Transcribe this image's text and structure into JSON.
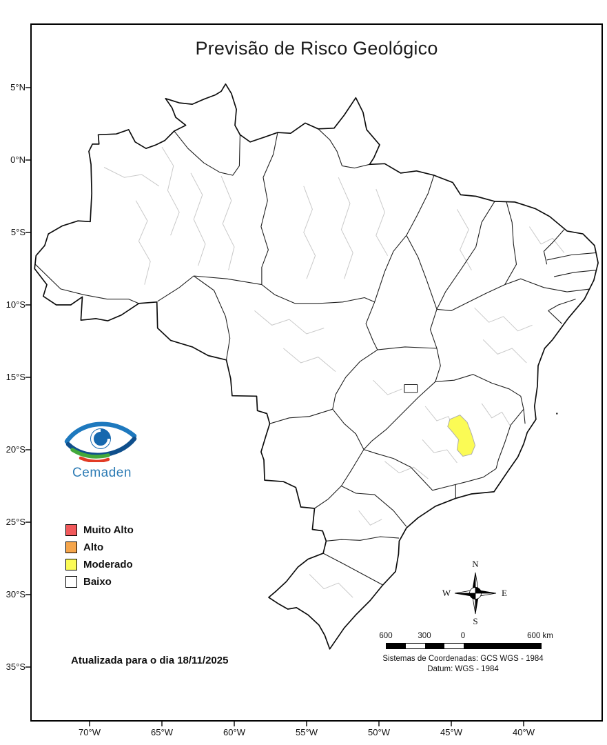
{
  "title": "Previsão de Risco Geológico",
  "axis": {
    "lat": [
      "5°N",
      "0°N",
      "5°S",
      "10°S",
      "15°S",
      "20°S",
      "25°S",
      "30°S",
      "35°S"
    ],
    "lon": [
      "70°W",
      "65°W",
      "60°W",
      "55°W",
      "50°W",
      "45°W",
      "40°W"
    ]
  },
  "legend": {
    "items": [
      {
        "label": "Muito Alto",
        "color": "#F1595B"
      },
      {
        "label": "Alto",
        "color": "#F5A54B"
      },
      {
        "label": "Moderado",
        "color": "#FBFB55"
      },
      {
        "label": "Baixo",
        "color": "#FFFFFF"
      }
    ]
  },
  "logo": {
    "name": "Cemaden"
  },
  "note": "Atualizada para o dia 18/11/2025",
  "compass": {
    "n": "N",
    "e": "E",
    "s": "S",
    "w": "W"
  },
  "scalebar": {
    "labels": [
      "600",
      "300",
      "0",
      "600 km"
    ]
  },
  "credits": {
    "line1": "Sistemas de Coordenadas: GCS WGS - 1984",
    "line2": "Datum: WGS - 1984"
  },
  "map": {
    "highlight_color": "#FBFB55",
    "land_color": "#FFFFFF",
    "state_border_color": "#1F1F1F",
    "subregion_border_color": "#C9C9C9"
  }
}
